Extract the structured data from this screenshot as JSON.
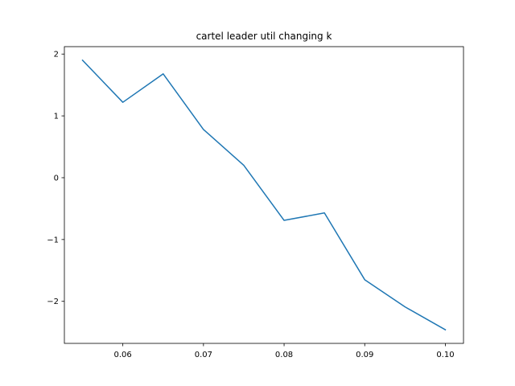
{
  "chart_data": {
    "type": "line",
    "title": "cartel leader util changing k",
    "xlabel": "",
    "ylabel": "",
    "x": [
      0.055,
      0.06,
      0.065,
      0.07,
      0.075,
      0.08,
      0.085,
      0.09,
      0.095,
      0.1
    ],
    "series": [
      {
        "values": [
          1.9,
          1.22,
          1.68,
          0.78,
          0.2,
          -0.69,
          -0.57,
          -1.65,
          -2.09,
          -2.46
        ],
        "color": "#1f77b4"
      }
    ],
    "xlim": [
      0.05275,
      0.10225
    ],
    "ylim": [
      -2.68,
      2.12
    ],
    "xticks": [
      0.06,
      0.07,
      0.08,
      0.09,
      0.1
    ],
    "xtick_labels": [
      "0.06",
      "0.07",
      "0.08",
      "0.09",
      "0.10"
    ],
    "yticks": [
      2,
      1,
      0,
      -1,
      -2
    ],
    "ytick_labels": [
      "2",
      "1",
      "0",
      "−1",
      "−2"
    ],
    "grid": false,
    "legend": false
  }
}
